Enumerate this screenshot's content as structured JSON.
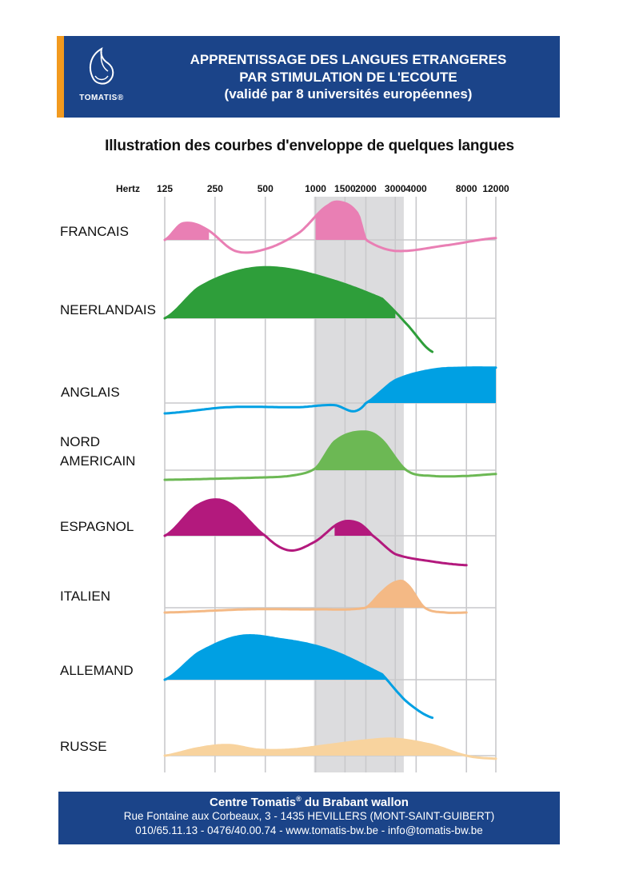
{
  "header": {
    "logo_text": "TOMATIS®",
    "title_line1": "APPRENTISSAGE DES LANGUES ETRANGERES",
    "title_line2": "PAR STIMULATION DE L'ECOUTE",
    "title_line3": "(validé par 8 universités européennes)",
    "accent_color": "#f29a1f",
    "band_color": "#1b4489"
  },
  "subtitle": "Illustration des courbes d'enveloppe de quelques langues",
  "chart_data": {
    "type": "area",
    "xlabel": "Hertz",
    "x_scale": "log",
    "x_ticks": [
      125,
      250,
      500,
      1000,
      1500,
      2000,
      3000,
      4000,
      8000,
      12000
    ],
    "x_tick_labels": [
      "125",
      "250",
      "500",
      "1000",
      "1500",
      "2000",
      "3000",
      "4000",
      "8000",
      "12000"
    ],
    "highlight_band_hz": [
      1000,
      3300
    ],
    "grid": true,
    "series": [
      {
        "name": "FRANCAIS",
        "color": "#e97fb4",
        "curve": [
          [
            125,
            0
          ],
          [
            160,
            0.45
          ],
          [
            220,
            0.3
          ],
          [
            330,
            -0.3
          ],
          [
            500,
            -0.25
          ],
          [
            800,
            0.2
          ],
          [
            1200,
            0.95
          ],
          [
            1500,
            1
          ],
          [
            1800,
            0.7
          ],
          [
            2000,
            0
          ],
          [
            3000,
            -0.3
          ],
          [
            6000,
            -0.15
          ],
          [
            12000,
            0.05
          ]
        ],
        "filled_above_hz": [
          [
            125,
            230
          ],
          [
            1000,
            2000
          ]
        ]
      },
      {
        "name": "NEERLANDAIS",
        "color": "#2e9e3a",
        "curve": [
          [
            125,
            0
          ],
          [
            200,
            0.55
          ],
          [
            350,
            0.85
          ],
          [
            600,
            0.9
          ],
          [
            1200,
            0.7
          ],
          [
            2500,
            0.35
          ],
          [
            3500,
            -0.1
          ],
          [
            5000,
            -0.6
          ]
        ],
        "filled_above_hz": [
          [
            125,
            3000
          ]
        ]
      },
      {
        "name": "ANGLAIS",
        "color": "#00a0e3",
        "curve": [
          [
            125,
            -0.25
          ],
          [
            300,
            -0.1
          ],
          [
            800,
            -0.1
          ],
          [
            1300,
            -0.05
          ],
          [
            1700,
            -0.2
          ],
          [
            2000,
            0
          ],
          [
            3000,
            0.55
          ],
          [
            5000,
            0.8
          ],
          [
            8000,
            0.85
          ],
          [
            12000,
            0.85
          ]
        ],
        "filled_above_hz": [
          [
            2000,
            12000
          ]
        ]
      },
      {
        "name": "NORD AMERICAIN",
        "color": "#6cb854",
        "curve": [
          [
            125,
            -0.25
          ],
          [
            400,
            -0.2
          ],
          [
            700,
            -0.15
          ],
          [
            1000,
            0.05
          ],
          [
            1300,
            0.75
          ],
          [
            1800,
            1
          ],
          [
            2400,
            0.85
          ],
          [
            3500,
            0
          ],
          [
            5000,
            -0.15
          ],
          [
            8000,
            -0.15
          ],
          [
            12000,
            -0.1
          ]
        ],
        "filled_above_hz": [
          [
            1000,
            3500
          ]
        ]
      },
      {
        "name": "ESPAGNOL",
        "color": "#b3197d",
        "curve": [
          [
            125,
            0
          ],
          [
            200,
            0.85
          ],
          [
            300,
            0.9
          ],
          [
            500,
            0
          ],
          [
            700,
            -0.4
          ],
          [
            1000,
            -0.15
          ],
          [
            1400,
            0.35
          ],
          [
            1800,
            0.35
          ],
          [
            2200,
            0
          ],
          [
            3000,
            -0.5
          ],
          [
            5000,
            -0.7
          ],
          [
            8000,
            -0.8
          ]
        ],
        "filled_above_hz": [
          [
            125,
            500
          ],
          [
            1300,
            2200
          ]
        ]
      },
      {
        "name": "ITALIEN",
        "color": "#f4b985",
        "curve": [
          [
            125,
            -0.15
          ],
          [
            400,
            -0.05
          ],
          [
            1000,
            -0.05
          ],
          [
            2000,
            0
          ],
          [
            2500,
            0.5
          ],
          [
            3000,
            0.8
          ],
          [
            3500,
            0.75
          ],
          [
            4500,
            0
          ],
          [
            6000,
            -0.15
          ],
          [
            8000,
            -0.15
          ]
        ],
        "filled_above_hz": [
          [
            2000,
            4500
          ]
        ]
      },
      {
        "name": "ALLEMAND",
        "color": "#00a0e3",
        "curve": [
          [
            125,
            0
          ],
          [
            200,
            0.5
          ],
          [
            350,
            0.8
          ],
          [
            600,
            0.75
          ],
          [
            1200,
            0.55
          ],
          [
            2500,
            0.1
          ],
          [
            3500,
            -0.4
          ],
          [
            5000,
            -0.7
          ]
        ],
        "filled_above_hz": [
          [
            125,
            3200
          ]
        ]
      },
      {
        "name": "RUSSE",
        "color": "#f8d39e",
        "curve": [
          [
            125,
            0
          ],
          [
            200,
            0.25
          ],
          [
            300,
            0.35
          ],
          [
            450,
            0.2
          ],
          [
            700,
            0.2
          ],
          [
            1200,
            0.35
          ],
          [
            2000,
            0.5
          ],
          [
            3000,
            0.55
          ],
          [
            5000,
            0.35
          ],
          [
            8000,
            0
          ],
          [
            12000,
            -0.1
          ]
        ],
        "filled_above_hz": [
          [
            125,
            8000
          ]
        ]
      }
    ]
  },
  "footer": {
    "line1_a": "Centre Tomatis",
    "line1_sup": "®",
    "line1_b": " du Brabant wallon",
    "line2": "Rue Fontaine aux Corbeaux, 3 - 1435 HEVILLERS (MONT-SAINT-GUIBERT)",
    "line3": "010/65.11.13 - 0476/40.00.74 - www.tomatis-bw.be - info@tomatis-bw.be"
  }
}
